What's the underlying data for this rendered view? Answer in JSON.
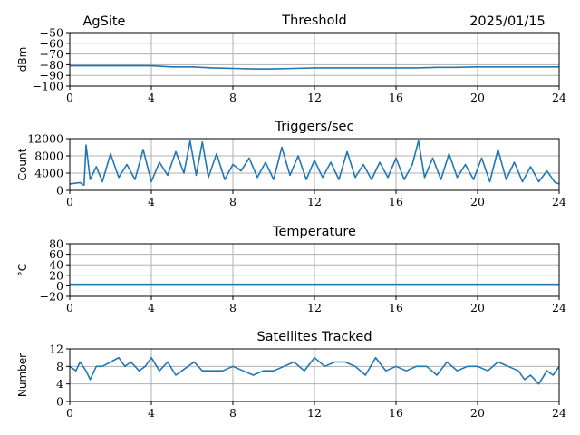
{
  "header": {
    "site": "AgSite",
    "date": "2025/01/15"
  },
  "chart_data": [
    {
      "type": "line",
      "title": "Threshold",
      "ylabel": "dBm",
      "xlabel": "",
      "xlim": [
        0,
        24
      ],
      "ylim": [
        -100,
        -50
      ],
      "xticks": [
        0,
        4,
        8,
        12,
        16,
        20,
        24
      ],
      "yticks": [
        -100,
        -90,
        -80,
        -70,
        -60,
        -50
      ],
      "ytick_labels": [
        "−100",
        "−90",
        "−80",
        "−70",
        "−60",
        "−50"
      ],
      "grid": true,
      "series": [
        {
          "x": [
            0,
            1,
            2,
            3,
            4,
            5,
            6,
            7,
            8,
            9,
            10,
            11,
            12,
            13,
            14,
            15,
            16,
            17,
            18,
            19,
            20,
            21,
            22,
            23,
            24
          ],
          "values": [
            -81,
            -81,
            -81,
            -81,
            -81,
            -82,
            -82,
            -83,
            -83.5,
            -84,
            -84,
            -83.5,
            -83,
            -83,
            -83,
            -83,
            -83,
            -83,
            -82.5,
            -82.5,
            -82,
            -82,
            -82,
            -82,
            -82
          ]
        }
      ]
    },
    {
      "type": "line",
      "title": "Triggers/sec",
      "ylabel": "Count",
      "xlabel": "",
      "xlim": [
        0,
        24
      ],
      "ylim": [
        0,
        12000
      ],
      "xticks": [
        0,
        4,
        8,
        12,
        16,
        20,
        24
      ],
      "yticks": [
        0,
        4000,
        8000,
        12000
      ],
      "ytick_labels": [
        "0",
        "4000",
        "8000",
        "12000"
      ],
      "grid": true,
      "series": [
        {
          "x": [
            0,
            0.5,
            0.7,
            0.8,
            1.0,
            1.3,
            1.6,
            2.0,
            2.4,
            2.8,
            3.2,
            3.6,
            4.0,
            4.4,
            4.8,
            5.2,
            5.6,
            5.9,
            6.2,
            6.5,
            6.8,
            7.2,
            7.6,
            8.0,
            8.4,
            8.8,
            9.2,
            9.6,
            10.0,
            10.4,
            10.8,
            11.2,
            11.6,
            12.0,
            12.4,
            12.8,
            13.2,
            13.6,
            14.0,
            14.4,
            14.8,
            15.2,
            15.6,
            16.0,
            16.4,
            16.8,
            17.1,
            17.4,
            17.8,
            18.2,
            18.6,
            19.0,
            19.4,
            19.8,
            20.2,
            20.6,
            21.0,
            21.4,
            21.8,
            22.2,
            22.6,
            23.0,
            23.4,
            23.8,
            24.0
          ],
          "values": [
            1500,
            1800,
            1200,
            10500,
            2500,
            5500,
            2000,
            8500,
            3000,
            6000,
            2500,
            9500,
            2000,
            6500,
            3500,
            9000,
            4000,
            11500,
            3500,
            11200,
            3000,
            8500,
            2500,
            6000,
            4500,
            7500,
            3000,
            6500,
            2500,
            10000,
            3500,
            8000,
            2500,
            7000,
            3000,
            6500,
            2500,
            9000,
            3000,
            6000,
            2500,
            6500,
            3000,
            7500,
            2500,
            6000,
            11500,
            3000,
            7500,
            2500,
            8500,
            3000,
            6000,
            2500,
            7500,
            2000,
            9500,
            2500,
            6500,
            2000,
            5500,
            2000,
            4500,
            1800,
            1500
          ]
        }
      ]
    },
    {
      "type": "line",
      "title": "Temperature",
      "ylabel": "°C",
      "xlabel": "",
      "xlim": [
        0,
        24
      ],
      "ylim": [
        -20,
        80
      ],
      "xticks": [
        0,
        4,
        8,
        12,
        16,
        20,
        24
      ],
      "yticks": [
        -20,
        0,
        20,
        40,
        60,
        80
      ],
      "ytick_labels": [
        "−20",
        "0",
        "20",
        "40",
        "60",
        "80"
      ],
      "grid": true,
      "series": [
        {
          "x": [
            0,
            24
          ],
          "values": [
            3,
            3
          ]
        }
      ]
    },
    {
      "type": "line",
      "title": "Satellites Tracked",
      "ylabel": "Number",
      "xlabel": "",
      "xlim": [
        0,
        24
      ],
      "ylim": [
        0,
        12
      ],
      "xticks": [
        0,
        4,
        8,
        12,
        16,
        20,
        24
      ],
      "yticks": [
        0,
        4,
        8,
        12
      ],
      "ytick_labels": [
        "0",
        "4",
        "8",
        "12"
      ],
      "grid": true,
      "series": [
        {
          "x": [
            0,
            0.3,
            0.5,
            0.8,
            1.0,
            1.3,
            1.6,
            2.0,
            2.4,
            2.7,
            3.0,
            3.4,
            3.7,
            4.0,
            4.4,
            4.8,
            5.2,
            5.5,
            5.8,
            6.1,
            6.5,
            7.0,
            7.5,
            8.0,
            8.5,
            9.0,
            9.5,
            10.0,
            10.5,
            11.0,
            11.5,
            12.0,
            12.5,
            13.0,
            13.5,
            14.0,
            14.5,
            15.0,
            15.5,
            16.0,
            16.5,
            17.0,
            17.5,
            18.0,
            18.5,
            19.0,
            19.5,
            20.0,
            20.5,
            21.0,
            21.5,
            22.0,
            22.3,
            22.6,
            23.0,
            23.4,
            23.7,
            24.0
          ],
          "values": [
            8,
            7,
            9,
            7,
            5,
            8,
            8,
            9,
            10,
            8,
            9,
            7,
            8,
            10,
            7,
            9,
            6,
            7,
            8,
            9,
            7,
            7,
            7,
            8,
            7,
            6,
            7,
            7,
            8,
            9,
            7,
            10,
            8,
            9,
            9,
            8,
            6,
            10,
            7,
            8,
            7,
            8,
            8,
            6,
            9,
            7,
            8,
            8,
            7,
            9,
            8,
            7,
            5,
            6,
            4,
            7,
            6,
            8
          ]
        }
      ]
    }
  ]
}
